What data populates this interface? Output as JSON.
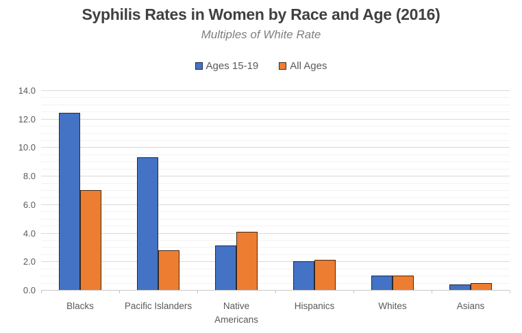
{
  "chart_data": {
    "type": "bar",
    "title": "Syphilis Rates in Women by Race and Age (2016)",
    "subtitle": "Multiples of White Rate",
    "categories": [
      "Blacks",
      "Pacific Islanders",
      "Native Americans",
      "Hispanics",
      "Whites",
      "Asians"
    ],
    "series": [
      {
        "name": "Ages 15-19",
        "color": "#4472C4",
        "border": "#1E2A45",
        "values": [
          12.4,
          9.3,
          3.1,
          2.0,
          1.0,
          0.4
        ]
      },
      {
        "name": "All Ages",
        "color": "#ED7D31",
        "border": "#3B2A1A",
        "values": [
          7.0,
          2.8,
          4.1,
          2.1,
          1.0,
          0.5
        ]
      }
    ],
    "ylim": [
      0,
      14
    ],
    "y_major_step": 2.0,
    "y_minor_step": 0.5,
    "y_tick_labels": [
      "0.0",
      "2.0",
      "4.0",
      "6.0",
      "8.0",
      "10.0",
      "12.0",
      "14.0"
    ],
    "grid": true,
    "legend_position": "top"
  },
  "colors": {
    "title_text": "#404040",
    "subtitle_text": "#7F7F7F",
    "axis_text": "#595959",
    "major_grid": "#D9D9D9",
    "minor_grid": "#F2F2F2",
    "axis_line": "#C6C6C6"
  }
}
